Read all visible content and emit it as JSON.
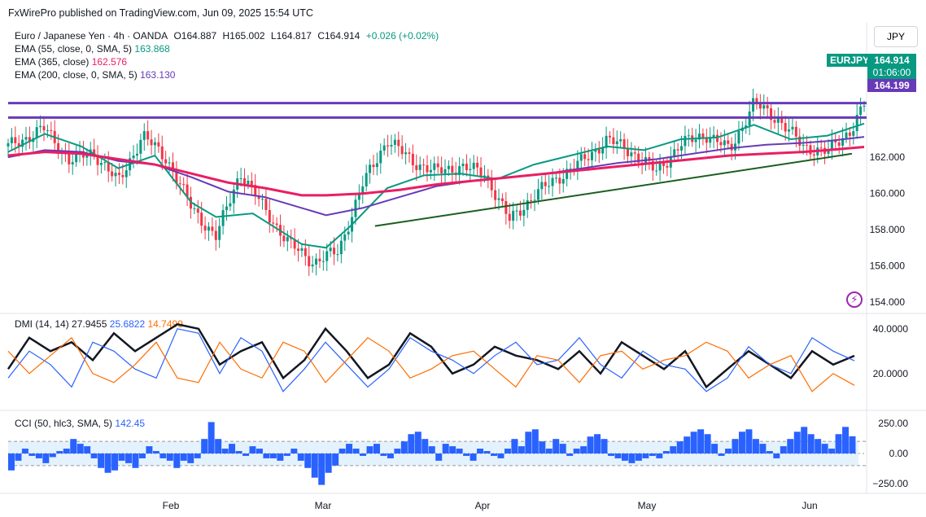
{
  "header": {
    "publisher_line": "FxWirePro published on TradingView.com, Jun 09, 2025 15:54 UTC"
  },
  "symbol": {
    "title": "Euro / Japanese Yen · 4h · OANDA",
    "open": "O164.887",
    "high": "H165.002",
    "low": "L164.817",
    "close": "C164.914",
    "change": "+0.026 (+0.02%)",
    "currency": "JPY",
    "ticker_tag": "EURJPY",
    "price_tag": "164.914",
    "countdown_tag": "01:06:00",
    "line_tag": "164.199"
  },
  "indicators": {
    "ema55": {
      "label": "EMA (55, close, 0, SMA, 5)",
      "value": "163.868",
      "color": "#089981"
    },
    "ema365": {
      "label": "EMA (365, close)",
      "value": "162.576",
      "color": "#e91e63"
    },
    "ema200": {
      "label": "EMA (200, close, 0, SMA, 5)",
      "value": "163.130",
      "color": "#673ab7"
    },
    "dmi": {
      "label": "DMI (14, 14)",
      "adx": "27.9455",
      "plus_di": "25.6822",
      "minus_di": "14.7499",
      "colors": [
        "#131722",
        "#2962ff",
        "#ff6d00"
      ]
    },
    "cci": {
      "label": "CCI (50, hlc3, SMA, 5)",
      "value": "142.45",
      "color": "#2962ff"
    }
  },
  "chart_data": [
    {
      "type": "candlestick",
      "title": "Euro / Japanese Yen · 4h · OANDA",
      "ylim": [
        153.5,
        168
      ],
      "yticks": [
        "162.000",
        "160.000",
        "158.000",
        "156.000",
        "154.000"
      ],
      "xticks": [
        "Feb",
        "Mar",
        "Apr",
        "May",
        "Jun"
      ],
      "close_path": [
        [
          0,
          162.6
        ],
        [
          3,
          163.6
        ],
        [
          5,
          161.8
        ],
        [
          7,
          162.3
        ],
        [
          9,
          160.6
        ],
        [
          11,
          163.2
        ],
        [
          13,
          161.9
        ],
        [
          15,
          159.2
        ],
        [
          17,
          157.6
        ],
        [
          19,
          161.2
        ],
        [
          21,
          159.1
        ],
        [
          23,
          157.2
        ],
        [
          25,
          156.2
        ],
        [
          27,
          156.8
        ],
        [
          29,
          160.5
        ],
        [
          31,
          163.0
        ],
        [
          33,
          161.8
        ],
        [
          35,
          161.2
        ],
        [
          37,
          161.5
        ],
        [
          39,
          161.1
        ],
        [
          41,
          158.5
        ],
        [
          43,
          159.9
        ],
        [
          45,
          160.9
        ],
        [
          47,
          161.8
        ],
        [
          49,
          163.0
        ],
        [
          51,
          162.3
        ],
        [
          53,
          161.2
        ],
        [
          55,
          162.7
        ],
        [
          57,
          163.3
        ],
        [
          59,
          162.4
        ],
        [
          61,
          165.0
        ],
        [
          63,
          164.1
        ],
        [
          65,
          162.6
        ],
        [
          67,
          162.3
        ],
        [
          69,
          163.6
        ],
        [
          70,
          164.91
        ]
      ],
      "series": [
        {
          "name": "EMA (55, close, 0, SMA, 5)",
          "value": 163.868,
          "points": [
            [
              0,
              162.3
            ],
            [
              3,
              163.3
            ],
            [
              6,
              162.6
            ],
            [
              9,
              161.4
            ],
            [
              12,
              162.1
            ],
            [
              15,
              159.5
            ],
            [
              17,
              158.7
            ],
            [
              20,
              158.9
            ],
            [
              24,
              157.2
            ],
            [
              26,
              157.0
            ],
            [
              28,
              158.2
            ],
            [
              31,
              160.3
            ],
            [
              34,
              161.0
            ],
            [
              37,
              161.1
            ],
            [
              40,
              160.8
            ],
            [
              43,
              161.6
            ],
            [
              46,
              162.1
            ],
            [
              49,
              162.6
            ],
            [
              52,
              162.4
            ],
            [
              55,
              163.0
            ],
            [
              58,
              163.1
            ],
            [
              61,
              163.8
            ],
            [
              64,
              163.0
            ],
            [
              67,
              163.2
            ],
            [
              70,
              163.868
            ]
          ]
        },
        {
          "name": "EMA (200, close, 0, SMA, 5)",
          "value": 163.13,
          "points": [
            [
              0,
              162.0
            ],
            [
              3,
              162.4
            ],
            [
              6,
              162.3
            ],
            [
              9,
              161.8
            ],
            [
              12,
              161.6
            ],
            [
              15,
              160.9
            ],
            [
              18,
              160.1
            ],
            [
              21,
              159.8
            ],
            [
              24,
              159.2
            ],
            [
              26,
              158.8
            ],
            [
              29,
              159.2
            ],
            [
              32,
              159.8
            ],
            [
              35,
              160.4
            ],
            [
              38,
              160.7
            ],
            [
              41,
              160.9
            ],
            [
              44,
              161.1
            ],
            [
              47,
              161.4
            ],
            [
              50,
              161.7
            ],
            [
              53,
              161.9
            ],
            [
              56,
              162.2
            ],
            [
              59,
              162.5
            ],
            [
              62,
              162.7
            ],
            [
              65,
              162.8
            ],
            [
              67,
              162.9
            ],
            [
              70,
              163.13
            ]
          ]
        },
        {
          "name": "EMA (365, close)",
          "value": 162.576,
          "points": [
            [
              0,
              162.1
            ],
            [
              3,
              162.3
            ],
            [
              6,
              162.2
            ],
            [
              9,
              161.9
            ],
            [
              12,
              161.6
            ],
            [
              15,
              161.1
            ],
            [
              18,
              160.6
            ],
            [
              21,
              160.3
            ],
            [
              24,
              159.9
            ],
            [
              26,
              159.9
            ],
            [
              29,
              160.0
            ],
            [
              32,
              160.2
            ],
            [
              35,
              160.5
            ],
            [
              38,
              160.7
            ],
            [
              41,
              160.9
            ],
            [
              44,
              161.1
            ],
            [
              47,
              161.3
            ],
            [
              50,
              161.5
            ],
            [
              53,
              161.7
            ],
            [
              56,
              161.9
            ],
            [
              59,
              162.1
            ],
            [
              62,
              162.2
            ],
            [
              65,
              162.3
            ],
            [
              67,
              162.4
            ],
            [
              70,
              162.576
            ]
          ]
        }
      ],
      "horizontal_lines": [
        165.0,
        164.199
      ],
      "trendline": [
        [
          30,
          158.2
        ],
        [
          69,
          162.2
        ]
      ]
    },
    {
      "type": "line",
      "title": "DMI (14, 14)",
      "ylim": [
        5,
        45
      ],
      "yticks": [
        "40.0000",
        "20.0000"
      ],
      "series": [
        {
          "name": "ADX",
          "value": 27.9455,
          "values": [
            22,
            36,
            30,
            34,
            26,
            38,
            30,
            36,
            42,
            40,
            24,
            30,
            34,
            18,
            26,
            40,
            30,
            18,
            24,
            38,
            32,
            20,
            24,
            32,
            28,
            26,
            22,
            30,
            20,
            34,
            28,
            22,
            30,
            14,
            22,
            30,
            24,
            18,
            30,
            24,
            27.9
          ]
        },
        {
          "name": "+DI",
          "value": 25.6822,
          "values": [
            18,
            30,
            24,
            14,
            34,
            30,
            22,
            18,
            40,
            38,
            20,
            36,
            30,
            12,
            22,
            34,
            24,
            14,
            22,
            36,
            30,
            26,
            20,
            28,
            34,
            24,
            26,
            36,
            24,
            18,
            30,
            24,
            22,
            12,
            18,
            32,
            24,
            20,
            36,
            30,
            25.7
          ]
        },
        {
          "name": "-DI",
          "value": 14.7499,
          "values": [
            30,
            20,
            28,
            36,
            20,
            16,
            24,
            34,
            18,
            16,
            34,
            22,
            18,
            34,
            30,
            16,
            26,
            36,
            30,
            18,
            22,
            28,
            30,
            22,
            14,
            28,
            26,
            16,
            28,
            30,
            22,
            26,
            28,
            34,
            30,
            18,
            24,
            28,
            12,
            20,
            14.7
          ]
        }
      ]
    },
    {
      "type": "bar",
      "title": "CCI (50, hlc3, SMA, 5)",
      "ylim": [
        -310,
        330
      ],
      "yticks": [
        "250.00",
        "0.00",
        "−250.00"
      ],
      "bands": [
        100,
        -100
      ],
      "values": [
        -140,
        -60,
        40,
        -20,
        -40,
        -80,
        -30,
        20,
        40,
        120,
        80,
        60,
        -40,
        -120,
        -160,
        -140,
        -60,
        -80,
        -120,
        -40,
        60,
        20,
        -40,
        -60,
        -120,
        -60,
        -80,
        -40,
        120,
        260,
        120,
        40,
        80,
        20,
        -20,
        60,
        40,
        -40,
        -40,
        -60,
        -20,
        40,
        -60,
        -120,
        -200,
        -260,
        -160,
        -100,
        40,
        80,
        40,
        -20,
        60,
        80,
        -20,
        -40,
        40,
        100,
        160,
        180,
        120,
        60,
        -60,
        80,
        60,
        40,
        -20,
        -60,
        40,
        20,
        -20,
        -40,
        40,
        120,
        60,
        180,
        200,
        100,
        40,
        120,
        80,
        -20,
        40,
        60,
        140,
        160,
        120,
        -20,
        -40,
        -60,
        -80,
        -60,
        -40,
        -20,
        -40,
        20,
        60,
        100,
        140,
        180,
        200,
        160,
        80,
        -20,
        40,
        120,
        180,
        200,
        120,
        80,
        20,
        -40,
        60,
        120,
        180,
        220,
        160,
        120,
        80,
        40,
        160,
        220,
        142.45
      ]
    }
  ]
}
